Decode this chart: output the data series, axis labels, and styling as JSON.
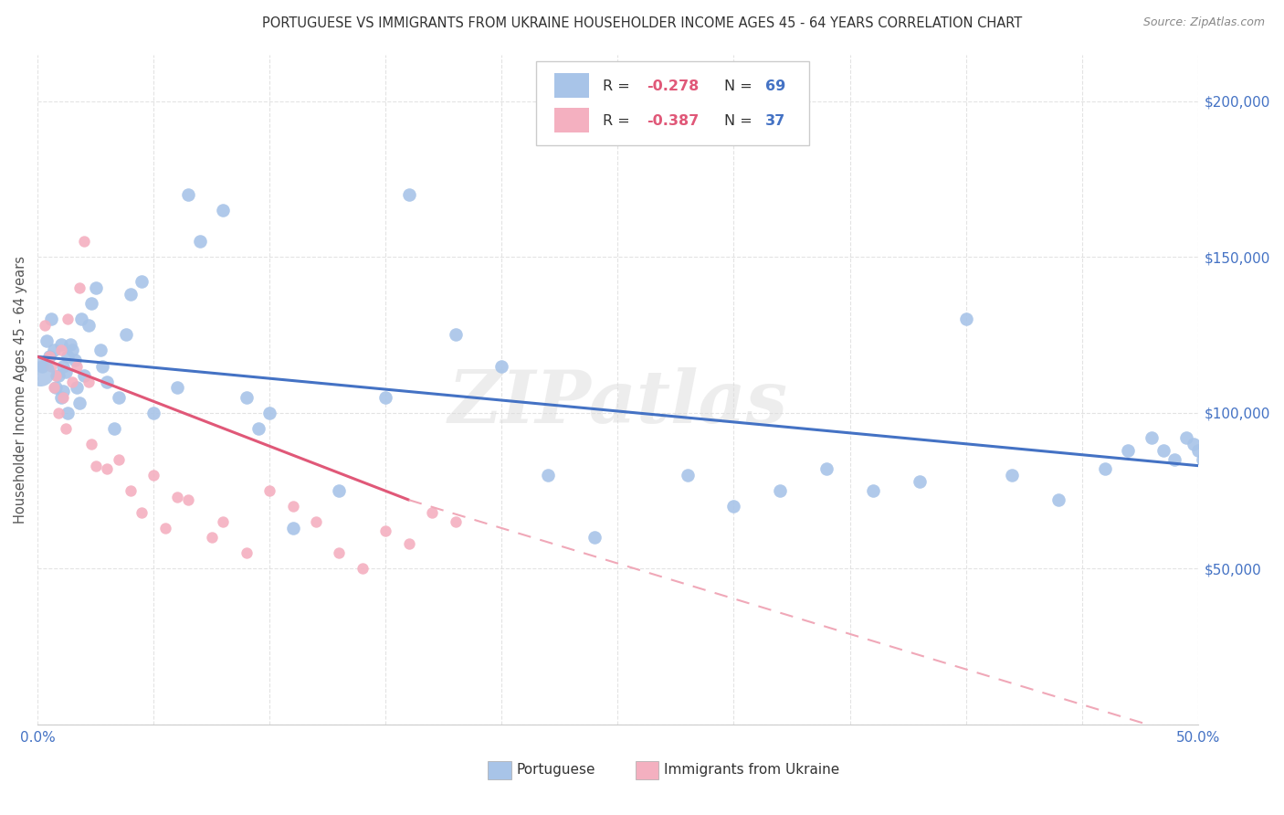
{
  "title": "PORTUGUESE VS IMMIGRANTS FROM UKRAINE HOUSEHOLDER INCOME AGES 45 - 64 YEARS CORRELATION CHART",
  "source": "Source: ZipAtlas.com",
  "ylabel": "Householder Income Ages 45 - 64 years",
  "xlim": [
    0.0,
    0.5
  ],
  "ylim": [
    0,
    215000
  ],
  "watermark": "ZIPatlas",
  "legend_R1": "-0.278",
  "legend_N1": "69",
  "legend_R2": "-0.387",
  "legend_N2": "37",
  "color_blue": "#a8c4e8",
  "color_pink": "#f4b0c0",
  "color_blue_line": "#4472c4",
  "color_pink_line": "#e05878",
  "color_pink_dash": "#f0a8b8",
  "portuguese_x": [
    0.002,
    0.004,
    0.005,
    0.006,
    0.007,
    0.008,
    0.009,
    0.01,
    0.01,
    0.011,
    0.011,
    0.012,
    0.013,
    0.013,
    0.014,
    0.015,
    0.016,
    0.017,
    0.018,
    0.019,
    0.02,
    0.022,
    0.023,
    0.025,
    0.027,
    0.028,
    0.03,
    0.033,
    0.035,
    0.038,
    0.04,
    0.045,
    0.05,
    0.06,
    0.065,
    0.07,
    0.08,
    0.09,
    0.095,
    0.1,
    0.11,
    0.13,
    0.15,
    0.16,
    0.18,
    0.2,
    0.22,
    0.24,
    0.28,
    0.3,
    0.32,
    0.34,
    0.36,
    0.38,
    0.4,
    0.42,
    0.44,
    0.46,
    0.47,
    0.48,
    0.485,
    0.49,
    0.495,
    0.498,
    0.5,
    0.502,
    0.505,
    0.51,
    0.515
  ],
  "portuguese_y": [
    115000,
    123000,
    118000,
    130000,
    120000,
    108000,
    112000,
    105000,
    122000,
    115000,
    107000,
    113000,
    100000,
    118000,
    122000,
    120000,
    117000,
    108000,
    103000,
    130000,
    112000,
    128000,
    135000,
    140000,
    120000,
    115000,
    110000,
    95000,
    105000,
    125000,
    138000,
    142000,
    100000,
    108000,
    170000,
    155000,
    165000,
    105000,
    95000,
    100000,
    63000,
    75000,
    105000,
    170000,
    125000,
    115000,
    80000,
    60000,
    80000,
    70000,
    75000,
    82000,
    75000,
    78000,
    130000,
    80000,
    72000,
    82000,
    88000,
    92000,
    88000,
    85000,
    92000,
    90000,
    88000,
    85000,
    92000,
    95000,
    85000
  ],
  "ukraine_x": [
    0.003,
    0.005,
    0.006,
    0.007,
    0.008,
    0.009,
    0.01,
    0.011,
    0.012,
    0.013,
    0.015,
    0.017,
    0.018,
    0.02,
    0.022,
    0.023,
    0.025,
    0.03,
    0.035,
    0.04,
    0.045,
    0.05,
    0.055,
    0.06,
    0.065,
    0.075,
    0.08,
    0.09,
    0.1,
    0.11,
    0.12,
    0.13,
    0.14,
    0.15,
    0.16,
    0.17,
    0.18
  ],
  "ukraine_y": [
    128000,
    118000,
    115000,
    108000,
    112000,
    100000,
    120000,
    105000,
    95000,
    130000,
    110000,
    115000,
    140000,
    155000,
    110000,
    90000,
    83000,
    82000,
    85000,
    75000,
    68000,
    80000,
    63000,
    73000,
    72000,
    60000,
    65000,
    55000,
    75000,
    70000,
    65000,
    55000,
    50000,
    62000,
    58000,
    68000,
    65000
  ],
  "blue_line": [
    0.0,
    0.5,
    118000,
    83000
  ],
  "pink_solid": [
    0.0,
    0.16,
    118000,
    72000
  ],
  "pink_dash": [
    0.16,
    0.5,
    72000,
    -5000
  ],
  "ytick_positions": [
    0,
    50000,
    100000,
    150000,
    200000
  ],
  "ytick_labels": [
    "",
    "$50,000",
    "$100,000",
    "$150,000",
    "$200,000"
  ],
  "xtick_positions": [
    0.0,
    0.05,
    0.1,
    0.15,
    0.2,
    0.25,
    0.3,
    0.35,
    0.4,
    0.45,
    0.5
  ]
}
